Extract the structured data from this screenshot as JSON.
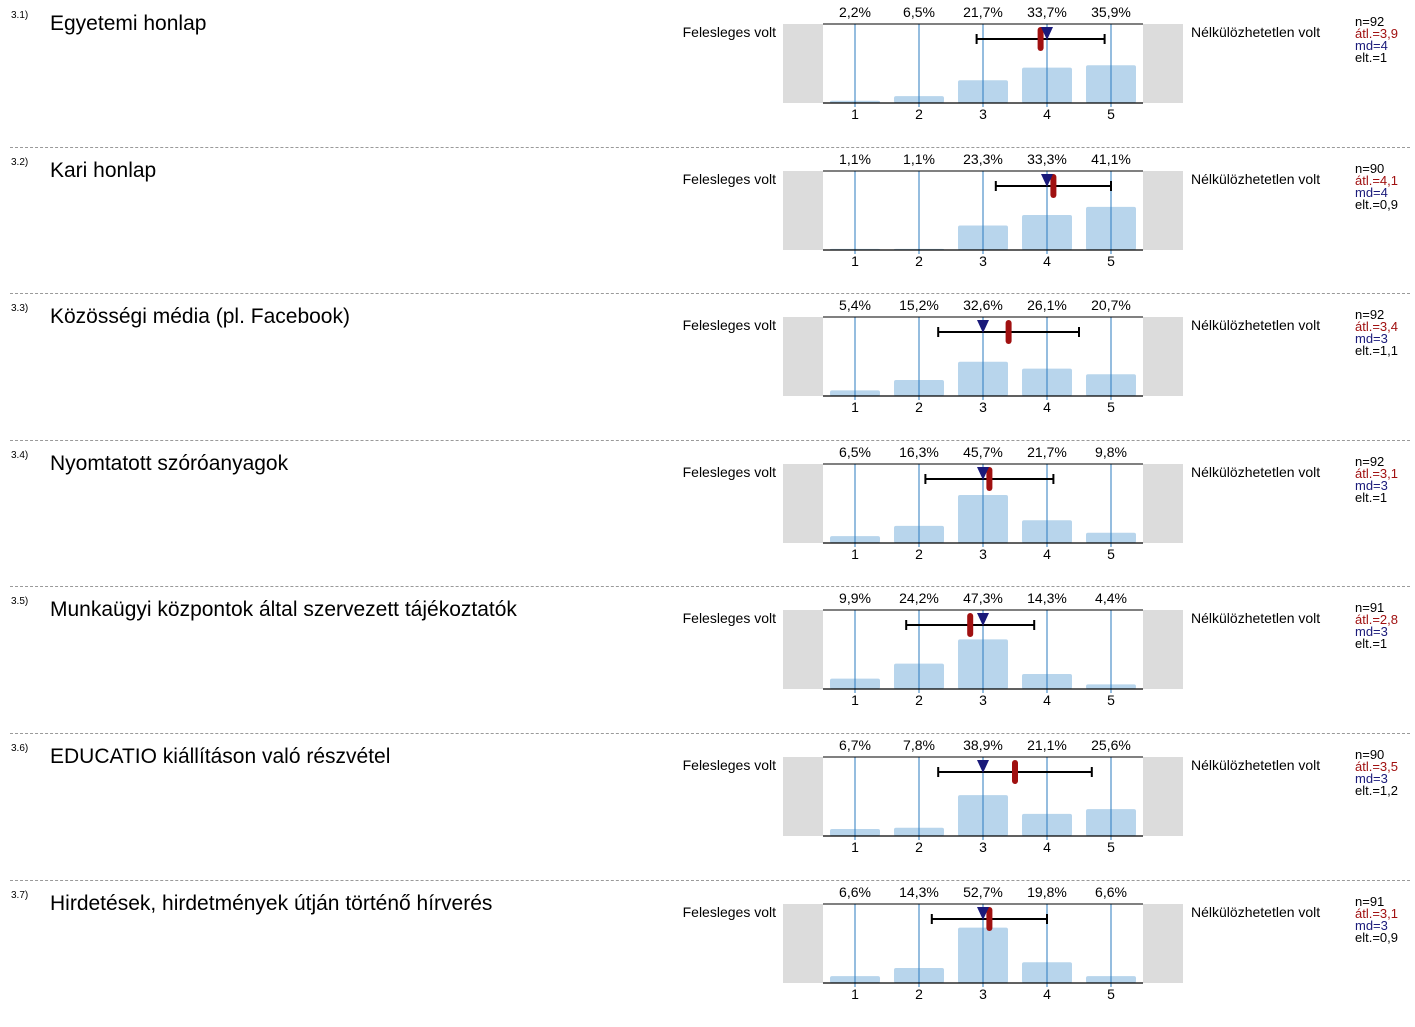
{
  "scale": {
    "left_label": "Felesleges volt",
    "right_label": "Nélkülözhetetlen volt",
    "categories": [
      "1",
      "2",
      "3",
      "4",
      "5"
    ]
  },
  "colors": {
    "bar": "#b8d5ec",
    "tick_line": "#2b7bbf",
    "side_box": "#dcdcdc",
    "mean": "#a01010",
    "median": "#1a1a7a",
    "stats_default": "#000000"
  },
  "chart_data": [
    {
      "type": "bar",
      "number": "3.1)",
      "title": "Egyetemi honlap",
      "categories": [
        "1",
        "2",
        "3",
        "4",
        "5"
      ],
      "values": [
        2.2,
        6.5,
        21.7,
        33.7,
        35.9
      ],
      "value_labels": [
        "2,2%",
        "6,5%",
        "21,7%",
        "33,7%",
        "35,9%"
      ],
      "mean": 3.9,
      "median": 4,
      "sd": 1,
      "range": [
        2.9,
        4.9
      ],
      "stats": {
        "n": "n=92",
        "mean": "átl.=3,9",
        "md": "md=4",
        "sd": "elt.=1"
      }
    },
    {
      "type": "bar",
      "number": "3.2)",
      "title": "Kari honlap",
      "categories": [
        "1",
        "2",
        "3",
        "4",
        "5"
      ],
      "values": [
        1.1,
        1.1,
        23.3,
        33.3,
        41.1
      ],
      "value_labels": [
        "1,1%",
        "1,1%",
        "23,3%",
        "33,3%",
        "41,1%"
      ],
      "mean": 4.1,
      "median": 4,
      "sd": 0.9,
      "range": [
        3.2,
        5.0
      ],
      "stats": {
        "n": "n=90",
        "mean": "átl.=4,1",
        "md": "md=4",
        "sd": "elt.=0,9"
      }
    },
    {
      "type": "bar",
      "number": "3.3)",
      "title": "Közösségi média (pl. Facebook)",
      "categories": [
        "1",
        "2",
        "3",
        "4",
        "5"
      ],
      "values": [
        5.4,
        15.2,
        32.6,
        26.1,
        20.7
      ],
      "value_labels": [
        "5,4%",
        "15,2%",
        "32,6%",
        "26,1%",
        "20,7%"
      ],
      "mean": 3.4,
      "median": 3,
      "sd": 1.1,
      "range": [
        2.3,
        4.5
      ],
      "stats": {
        "n": "n=92",
        "mean": "átl.=3,4",
        "md": "md=3",
        "sd": "elt.=1,1"
      }
    },
    {
      "type": "bar",
      "number": "3.4)",
      "title": "Nyomtatott szóróanyagok",
      "categories": [
        "1",
        "2",
        "3",
        "4",
        "5"
      ],
      "values": [
        6.5,
        16.3,
        45.7,
        21.7,
        9.8
      ],
      "value_labels": [
        "6,5%",
        "16,3%",
        "45,7%",
        "21,7%",
        "9,8%"
      ],
      "mean": 3.1,
      "median": 3,
      "sd": 1,
      "range": [
        2.1,
        4.1
      ],
      "stats": {
        "n": "n=92",
        "mean": "átl.=3,1",
        "md": "md=3",
        "sd": "elt.=1"
      }
    },
    {
      "type": "bar",
      "number": "3.5)",
      "title": "Munkaügyi központok által szervezett tájékoztatók",
      "categories": [
        "1",
        "2",
        "3",
        "4",
        "5"
      ],
      "values": [
        9.9,
        24.2,
        47.3,
        14.3,
        4.4
      ],
      "value_labels": [
        "9,9%",
        "24,2%",
        "47,3%",
        "14,3%",
        "4,4%"
      ],
      "mean": 2.8,
      "median": 3,
      "sd": 1,
      "range": [
        1.8,
        3.8
      ],
      "stats": {
        "n": "n=91",
        "mean": "átl.=2,8",
        "md": "md=3",
        "sd": "elt.=1"
      }
    },
    {
      "type": "bar",
      "number": "3.6)",
      "title": "EDUCATIO kiállításon való részvétel",
      "categories": [
        "1",
        "2",
        "3",
        "4",
        "5"
      ],
      "values": [
        6.7,
        7.8,
        38.9,
        21.1,
        25.6
      ],
      "value_labels": [
        "6,7%",
        "7,8%",
        "38,9%",
        "21,1%",
        "25,6%"
      ],
      "mean": 3.5,
      "median": 3,
      "sd": 1.2,
      "range": [
        2.3,
        4.7
      ],
      "stats": {
        "n": "n=90",
        "mean": "átl.=3,5",
        "md": "md=3",
        "sd": "elt.=1,2"
      }
    },
    {
      "type": "bar",
      "number": "3.7)",
      "title": "Hirdetések, hirdetmények útján történő hírverés",
      "categories": [
        "1",
        "2",
        "3",
        "4",
        "5"
      ],
      "values": [
        6.6,
        14.3,
        52.7,
        19.8,
        6.6
      ],
      "value_labels": [
        "6,6%",
        "14,3%",
        "52,7%",
        "19,8%",
        "6,6%"
      ],
      "mean": 3.1,
      "median": 3,
      "sd": 0.9,
      "range": [
        2.2,
        4.0
      ],
      "stats": {
        "n": "n=91",
        "mean": "átl.=3,1",
        "md": "md=3",
        "sd": "elt.=0,9"
      }
    }
  ]
}
